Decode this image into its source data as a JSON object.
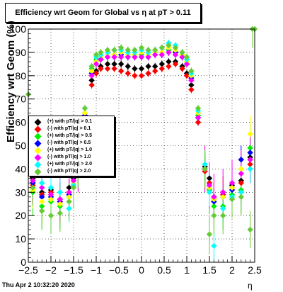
{
  "header": {
    "title": "Efficiency wrt Geom for Global vs   η at pT > 0.11"
  },
  "footer": {
    "timestamp": "Thu Apr  2 10:32:20 2020"
  },
  "chart_data": {
    "type": "scatter",
    "xlabel": "η",
    "ylabel": "Efficiency wrt Geom (%)",
    "xlim": [
      -2.5,
      2.5
    ],
    "ylim": [
      0,
      100
    ],
    "x_ticks": [
      -2.5,
      -2,
      -1.5,
      -1,
      -0.5,
      0,
      0.5,
      1,
      1.5,
      2,
      2.5
    ],
    "x_tick_labels": [
      "−2.5",
      "−2",
      "−1.5",
      "−1",
      "−0.5",
      "0",
      "0.5",
      "1",
      "1.5",
      "2",
      "2.5"
    ],
    "y_ticks": [
      0,
      10,
      20,
      30,
      40,
      50,
      60,
      70,
      80,
      90,
      100
    ],
    "y_tick_labels": [
      "0",
      "10",
      "20",
      "30",
      "40",
      "50",
      "60",
      "70",
      "80",
      "90",
      "100"
    ],
    "grid": true,
    "legend_position": "left",
    "series": [
      {
        "name": "(+) with pT/|q| > 0.1",
        "color": "#000000",
        "points": [
          [
            -2.4,
            36
          ],
          [
            -2.2,
            30
          ],
          [
            -2.0,
            31
          ],
          [
            -1.8,
            27
          ],
          [
            -1.6,
            32
          ],
          [
            -1.5,
            36
          ],
          [
            -1.4,
            41
          ],
          [
            -1.25,
            62
          ],
          [
            -1.1,
            78
          ],
          [
            -1.0,
            82
          ],
          [
            -0.9,
            84
          ],
          [
            -0.75,
            85
          ],
          [
            -0.6,
            85
          ],
          [
            -0.45,
            85
          ],
          [
            -0.3,
            84
          ],
          [
            -0.15,
            83
          ],
          [
            0,
            83
          ],
          [
            0.15,
            84
          ],
          [
            0.3,
            84
          ],
          [
            0.45,
            85
          ],
          [
            0.6,
            86
          ],
          [
            0.75,
            86
          ],
          [
            0.9,
            84
          ],
          [
            1.0,
            81
          ],
          [
            1.1,
            76
          ],
          [
            1.25,
            62
          ],
          [
            1.4,
            41
          ],
          [
            1.5,
            36
          ],
          [
            1.6,
            28
          ],
          [
            1.8,
            30
          ],
          [
            2.0,
            33
          ],
          [
            2.2,
            35
          ],
          [
            2.4,
            45
          ]
        ]
      },
      {
        "name": "(-) with pT/|q| > 0.1",
        "color": "#ff0000",
        "points": [
          [
            -2.4,
            33
          ],
          [
            -2.2,
            29
          ],
          [
            -2.0,
            30
          ],
          [
            -1.8,
            26
          ],
          [
            -1.6,
            30
          ],
          [
            -1.5,
            34
          ],
          [
            -1.4,
            39
          ],
          [
            -1.25,
            60
          ],
          [
            -1.1,
            76
          ],
          [
            -1.0,
            81
          ],
          [
            -0.9,
            83
          ],
          [
            -0.75,
            83
          ],
          [
            -0.6,
            83
          ],
          [
            -0.45,
            82
          ],
          [
            -0.3,
            81
          ],
          [
            -0.15,
            80
          ],
          [
            0,
            80
          ],
          [
            0.15,
            81
          ],
          [
            0.3,
            82
          ],
          [
            0.45,
            83
          ],
          [
            0.6,
            84
          ],
          [
            0.75,
            85
          ],
          [
            0.9,
            83
          ],
          [
            1.0,
            80
          ],
          [
            1.1,
            74
          ],
          [
            1.25,
            60
          ],
          [
            1.4,
            39
          ],
          [
            1.5,
            34
          ],
          [
            1.6,
            27
          ],
          [
            1.8,
            29
          ],
          [
            2.0,
            32
          ],
          [
            2.2,
            34
          ],
          [
            2.4,
            42
          ]
        ]
      },
      {
        "name": "(+) with pT/|q| > 0.5",
        "color": "#00ee00",
        "points": [
          [
            -2.4,
            30
          ],
          [
            -2.2,
            24
          ],
          [
            -2.0,
            26
          ],
          [
            -1.8,
            24
          ],
          [
            -1.6,
            28
          ],
          [
            -1.5,
            33
          ],
          [
            -1.4,
            40
          ],
          [
            -1.25,
            64
          ],
          [
            -1.1,
            83
          ],
          [
            -1.0,
            87
          ],
          [
            -0.9,
            88
          ],
          [
            -0.75,
            89
          ],
          [
            -0.6,
            89
          ],
          [
            -0.45,
            90
          ],
          [
            -0.3,
            89
          ],
          [
            -0.15,
            89
          ],
          [
            0,
            89
          ],
          [
            0.15,
            89
          ],
          [
            0.3,
            90
          ],
          [
            0.45,
            90
          ],
          [
            0.6,
            91
          ],
          [
            0.75,
            90
          ],
          [
            0.9,
            89
          ],
          [
            1.0,
            86
          ],
          [
            1.1,
            80
          ],
          [
            1.25,
            63
          ],
          [
            1.4,
            40
          ],
          [
            1.5,
            31
          ],
          [
            1.6,
            24
          ],
          [
            1.8,
            24
          ],
          [
            2.0,
            29
          ],
          [
            2.2,
            31
          ],
          [
            2.4,
            49
          ]
        ]
      },
      {
        "name": "(-) with pT/|q| > 0.5",
        "color": "#0000ff",
        "points": [
          [
            -2.4,
            34
          ],
          [
            -2.2,
            28
          ],
          [
            -2.0,
            28
          ],
          [
            -1.8,
            26
          ],
          [
            -1.6,
            29
          ],
          [
            -1.5,
            34
          ],
          [
            -1.4,
            40
          ],
          [
            -1.25,
            63
          ],
          [
            -1.1,
            81
          ],
          [
            -1.0,
            86
          ],
          [
            -0.9,
            87
          ],
          [
            -0.75,
            88
          ],
          [
            -0.6,
            88
          ],
          [
            -0.45,
            89
          ],
          [
            -0.3,
            88
          ],
          [
            -0.15,
            88
          ],
          [
            0,
            88
          ],
          [
            0.15,
            88
          ],
          [
            0.3,
            89
          ],
          [
            0.45,
            89
          ],
          [
            0.6,
            90
          ],
          [
            0.75,
            90
          ],
          [
            0.9,
            88
          ],
          [
            1.0,
            85
          ],
          [
            1.1,
            79
          ],
          [
            1.25,
            62
          ],
          [
            1.4,
            40
          ],
          [
            1.5,
            32
          ],
          [
            1.6,
            26
          ],
          [
            1.8,
            28
          ],
          [
            2.0,
            31
          ],
          [
            2.2,
            44
          ],
          [
            2.4,
            47
          ]
        ]
      },
      {
        "name": "(+) with pT/|q| > 1.0",
        "color": "#ffff00",
        "points": [
          [
            -2.4,
            31
          ],
          [
            -2.2,
            26
          ],
          [
            -2.0,
            27
          ],
          [
            -1.8,
            25
          ],
          [
            -1.6,
            28
          ],
          [
            -1.5,
            34
          ],
          [
            -1.4,
            41
          ],
          [
            -1.25,
            64
          ],
          [
            -1.1,
            82
          ],
          [
            -1.0,
            86
          ],
          [
            -0.9,
            88
          ],
          [
            -0.75,
            89
          ],
          [
            -0.6,
            89
          ],
          [
            -0.45,
            90
          ],
          [
            -0.3,
            89
          ],
          [
            -0.15,
            89
          ],
          [
            0,
            90
          ],
          [
            0.15,
            89
          ],
          [
            0.3,
            90
          ],
          [
            0.45,
            90
          ],
          [
            0.6,
            92
          ],
          [
            0.75,
            91
          ],
          [
            0.9,
            89
          ],
          [
            1.0,
            86
          ],
          [
            1.1,
            80
          ],
          [
            1.25,
            64
          ],
          [
            1.4,
            40
          ],
          [
            1.5,
            32
          ],
          [
            1.6,
            27
          ],
          [
            1.8,
            28
          ],
          [
            2.0,
            32
          ],
          [
            2.2,
            40
          ],
          [
            2.4,
            55
          ]
        ]
      },
      {
        "name": "(-) with pT/|q| > 1.0",
        "color": "#ff00ff",
        "points": [
          [
            -2.4,
            35
          ],
          [
            -2.2,
            32
          ],
          [
            -2.0,
            29
          ],
          [
            -1.8,
            27
          ],
          [
            -1.6,
            30
          ],
          [
            -1.5,
            35
          ],
          [
            -1.4,
            40
          ],
          [
            -1.25,
            62
          ],
          [
            -1.1,
            80
          ],
          [
            -1.0,
            85
          ],
          [
            -0.9,
            87
          ],
          [
            -0.75,
            88
          ],
          [
            -0.6,
            88
          ],
          [
            -0.45,
            88
          ],
          [
            -0.3,
            88
          ],
          [
            -0.15,
            88
          ],
          [
            0,
            88
          ],
          [
            0.15,
            88
          ],
          [
            0.3,
            89
          ],
          [
            0.45,
            89
          ],
          [
            0.6,
            90
          ],
          [
            0.75,
            89
          ],
          [
            0.9,
            88
          ],
          [
            1.0,
            85
          ],
          [
            1.1,
            78
          ],
          [
            1.25,
            62
          ],
          [
            1.4,
            40
          ],
          [
            1.5,
            33
          ],
          [
            1.6,
            28
          ],
          [
            1.8,
            30
          ],
          [
            2.0,
            34
          ],
          [
            2.2,
            38
          ],
          [
            2.4,
            44
          ]
        ]
      },
      {
        "name": "(+) with pT/|q| > 2.0",
        "color": "#00ffff",
        "points": [
          [
            -2.4,
            40
          ],
          [
            -2.2,
            34
          ],
          [
            -2.0,
            32
          ],
          [
            -1.8,
            30
          ],
          [
            -1.6,
            23
          ],
          [
            -1.5,
            33
          ],
          [
            -1.4,
            42
          ],
          [
            -1.25,
            66
          ],
          [
            -1.1,
            84
          ],
          [
            -1.0,
            88
          ],
          [
            -0.9,
            89
          ],
          [
            -0.75,
            90
          ],
          [
            -0.6,
            91
          ],
          [
            -0.45,
            91
          ],
          [
            -0.3,
            90
          ],
          [
            -0.15,
            90
          ],
          [
            0,
            91
          ],
          [
            0.15,
            90
          ],
          [
            0.3,
            91
          ],
          [
            0.45,
            92
          ],
          [
            0.6,
            94
          ],
          [
            0.75,
            93
          ],
          [
            0.9,
            90
          ],
          [
            1.0,
            87
          ],
          [
            1.1,
            81
          ],
          [
            1.25,
            65
          ],
          [
            1.4,
            42
          ],
          [
            1.5,
            30
          ],
          [
            1.6,
            7
          ],
          [
            1.8,
            23
          ],
          [
            2.0,
            28
          ],
          [
            2.2,
            30
          ],
          [
            2.4,
            40
          ]
        ]
      },
      {
        "name": "(-) with pT/|q| > 2.0",
        "color": "#66cc33",
        "points": [
          [
            -2.5,
            72
          ],
          [
            -2.4,
            32
          ],
          [
            -2.2,
            22
          ],
          [
            -2.0,
            20
          ],
          [
            -1.8,
            21
          ],
          [
            -1.6,
            26
          ],
          [
            -1.5,
            32
          ],
          [
            -1.4,
            40
          ],
          [
            -1.25,
            66
          ],
          [
            -1.1,
            84
          ],
          [
            -1.0,
            89
          ],
          [
            -0.9,
            90
          ],
          [
            -0.75,
            91
          ],
          [
            -0.6,
            91
          ],
          [
            -0.45,
            92
          ],
          [
            -0.3,
            91
          ],
          [
            -0.15,
            91
          ],
          [
            0,
            92
          ],
          [
            0.15,
            91
          ],
          [
            0.3,
            91
          ],
          [
            0.45,
            92
          ],
          [
            0.6,
            93
          ],
          [
            0.75,
            92
          ],
          [
            0.9,
            90
          ],
          [
            1.0,
            88
          ],
          [
            1.1,
            82
          ],
          [
            1.25,
            66
          ],
          [
            1.4,
            40
          ],
          [
            1.5,
            12
          ],
          [
            1.6,
            20
          ],
          [
            1.8,
            20
          ],
          [
            2.0,
            27
          ],
          [
            2.2,
            28
          ],
          [
            2.4,
            14
          ],
          [
            2.45,
            100
          ],
          [
            2.5,
            100
          ]
        ]
      }
    ]
  }
}
